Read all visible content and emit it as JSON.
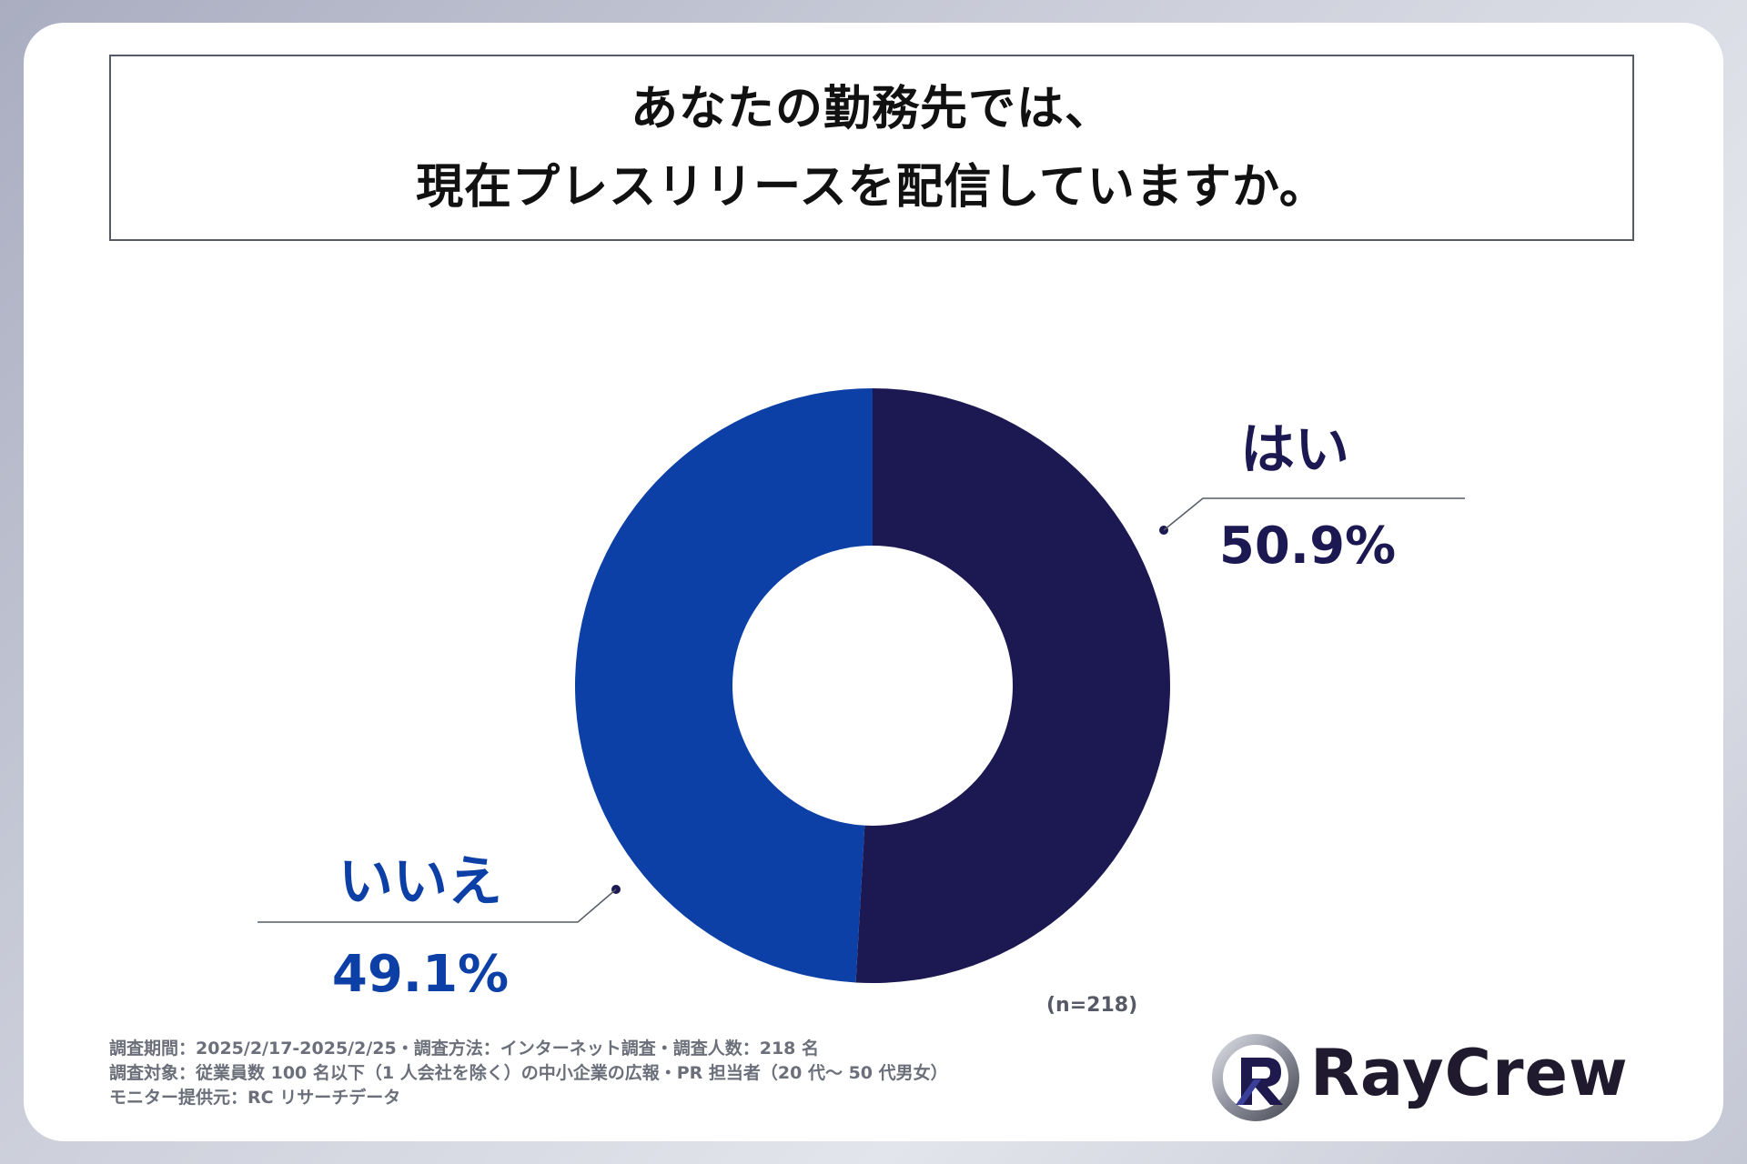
{
  "title": {
    "line1": "あなたの勤務先では、",
    "line2": "現在プレスリリースを配信していますか。"
  },
  "chart_data": {
    "type": "pie",
    "title": "あなたの勤務先では、現在プレスリリースを配信していますか。",
    "slices": [
      {
        "label": "はい",
        "value": 50.9,
        "value_label": "50.9%",
        "color": "#1c1852"
      },
      {
        "label": "いいえ",
        "value": 49.1,
        "value_label": "49.1%",
        "color": "#0c40a6"
      }
    ],
    "donut": true,
    "legend": "none"
  },
  "sample_note": "(n=218)",
  "footnotes": [
    "調査期間：2025/2/17-2025/2/25・調査方法：インターネット調査・調査人数：218 名",
    "調査対象：従業員数 100 名以下（1 人会社を除く）の中小企業の広報・PR 担当者（20 代〜 50 代男女）",
    "モニター提供元：RC リサーチデータ"
  ],
  "logo": {
    "text": "RayCrew"
  }
}
